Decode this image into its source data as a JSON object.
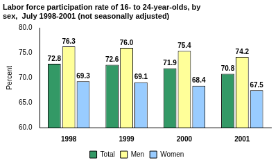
{
  "chart_data": {
    "type": "bar",
    "title": [
      "Labor force participation rate of 16- to 24-year-olds, by",
      "sex,  July 1998-2001 (not seasonally adjusted)"
    ],
    "y_label": "Percent",
    "categories": [
      "1998",
      "1999",
      "2000",
      "2001"
    ],
    "series": [
      {
        "name": "Total",
        "color": "#339966",
        "values": [
          72.8,
          72.6,
          71.9,
          70.8
        ],
        "value_labels": [
          "72.8",
          "72.6",
          "71.9",
          "70.8"
        ]
      },
      {
        "name": "Men",
        "color": "#ffff99",
        "values": [
          76.3,
          76.0,
          75.4,
          74.2
        ],
        "value_labels": [
          "76.3",
          "76.0",
          "75.4",
          "74.2"
        ]
      },
      {
        "name": "Women",
        "color": "#99ccff",
        "values": [
          69.3,
          69.1,
          68.4,
          67.5
        ],
        "value_labels": [
          "69.3",
          "69.1",
          "68.4",
          "67.5"
        ]
      }
    ],
    "ylim": [
      60,
      80
    ],
    "yticks": [
      {
        "value": 60,
        "label": "60.0"
      },
      {
        "value": 65,
        "label": "65.0"
      },
      {
        "value": 70,
        "label": "70.0"
      },
      {
        "value": 75,
        "label": "75.0"
      },
      {
        "value": 80,
        "label": "80.0"
      }
    ],
    "grid": false,
    "legend": "bottom",
    "data_labels": true
  }
}
